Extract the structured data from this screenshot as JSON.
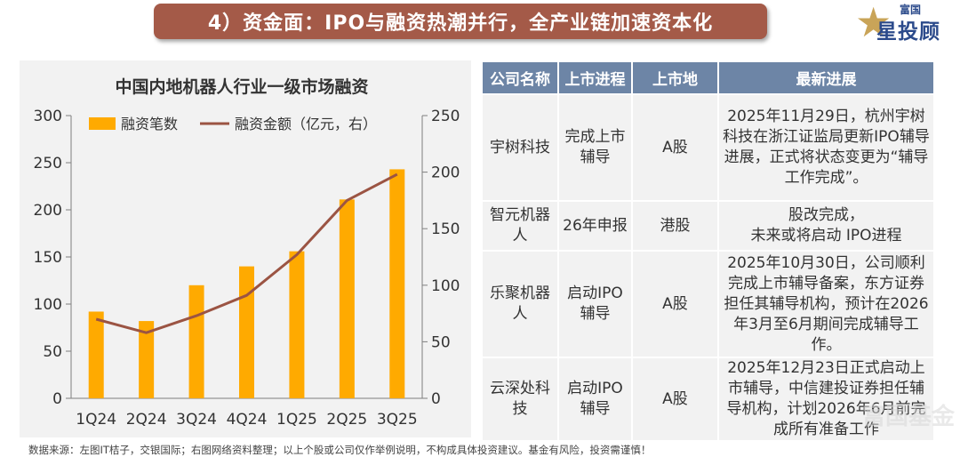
{
  "header": {
    "title": "4）资金面：IPO与融资热潮并行，全产业链加速资本化"
  },
  "logo": {
    "top_text": "富国",
    "main_text": "星投顾",
    "star_glyph": "★",
    "color": "#2b4a8b",
    "star_color": "#c9a458"
  },
  "chart_data": {
    "type": "bar+line",
    "title": "中国内地机器人行业一级市场融资",
    "categories": [
      "1Q24",
      "2Q24",
      "3Q24",
      "4Q24",
      "1Q25",
      "2Q25",
      "3Q25"
    ],
    "series": [
      {
        "name": "融资笔数",
        "type": "bar",
        "axis": "left",
        "color": "#ffaa00",
        "values": [
          92,
          82,
          120,
          140,
          156,
          211,
          243
        ]
      },
      {
        "name": "融资金额（亿元，右）",
        "type": "line",
        "axis": "right",
        "color": "#9b5443",
        "values": [
          70,
          58,
          73,
          91,
          127,
          175,
          198
        ]
      }
    ],
    "y_left": {
      "min": 0,
      "max": 300,
      "ticks": [
        0,
        50,
        100,
        150,
        200,
        250,
        300
      ]
    },
    "y_right": {
      "min": 0,
      "max": 250,
      "ticks": [
        0,
        50,
        100,
        150,
        200,
        250
      ]
    },
    "legend_position": "top"
  },
  "table": {
    "headers": [
      "公司名称",
      "上市进程",
      "上市地",
      "最新进展"
    ],
    "rows": [
      {
        "company": "宇树科技",
        "stage": "完成上市辅导",
        "market": "A股",
        "progress": "2025年11月29日，杭州宇树科技在浙江证监局更新IPO辅导进展，正式将状态变更为“辅导工作完成”。"
      },
      {
        "company": "智元机器人",
        "stage": "26年申报",
        "market": "港股",
        "progress": "股改完成，\n未来或将启动 IPO进程"
      },
      {
        "company": "乐聚机器人",
        "stage": "启动IPO辅导",
        "market": "A股",
        "progress": "2025年10月30日，公司顺利完成上市辅导备案，东方证券担任其辅导机构，预计在2026年3月至6月期间完成辅导工作。"
      },
      {
        "company": "云深处科技",
        "stage": "启动IPO辅导",
        "market": "A股",
        "progress": "2025年12月23日正式启动上市辅导，中信建投证券担任辅导机构，计划2026年6月前完成所有准备工作"
      }
    ]
  },
  "footnote": "数据来源：左图IT桔子，交银国际；右图网络资料整理；以上个股或公司仅作举例说明，不构成具体投资建议。基金有风险，投资需谨慎！",
  "watermark": "富国基金"
}
